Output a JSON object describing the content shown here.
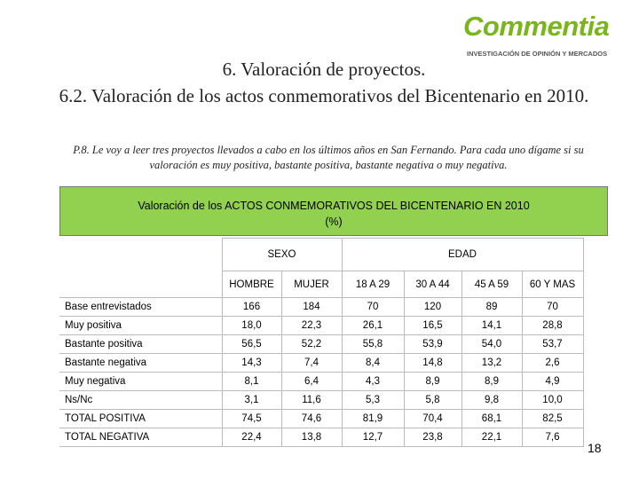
{
  "logo": {
    "name": "Commentia",
    "tagline": "INVESTIGACIÓN DE OPINIÓN Y MERCADOS"
  },
  "title": [
    "6. Valoración de proyectos.",
    "6.2. Valoración de los actos conmemorativos del Bicentenario en 2010."
  ],
  "question": "P.8. Le voy a leer tres proyectos llevados a cabo en los últimos años en San Fernando. Para cada uno dígame si su valoración es muy positiva, bastante positiva, bastante negativa o muy negativa.",
  "table": {
    "caption": "Valoración de los ACTOS CONMEMORATIVOS DEL BICENTENARIO EN 2010",
    "unit": "(%)",
    "groups": [
      {
        "label": "SEXO",
        "span": 2
      },
      {
        "label": "EDAD",
        "span": 4
      }
    ],
    "columns": [
      "HOMBRE",
      "MUJER",
      "18 A 29",
      "30 A 44",
      "45 A 59",
      "60 Y MAS"
    ],
    "rows": [
      [
        "Base entrevistados",
        "166",
        "184",
        "70",
        "120",
        "89",
        "70"
      ],
      [
        "Muy positiva",
        "18,0",
        "22,3",
        "26,1",
        "16,5",
        "14,1",
        "28,8"
      ],
      [
        "Bastante positiva",
        "56,5",
        "52,2",
        "55,8",
        "53,9",
        "54,0",
        "53,7"
      ],
      [
        "Bastante negativa",
        "14,3",
        "7,4",
        "8,4",
        "14,8",
        "13,2",
        "2,6"
      ],
      [
        "Muy negativa",
        "8,1",
        "6,4",
        "4,3",
        "8,9",
        "8,9",
        "4,9"
      ],
      [
        "Ns/Nc",
        "3,1",
        "11,6",
        "5,3",
        "5,8",
        "9,8",
        "10,0"
      ],
      [
        "TOTAL POSITIVA",
        "74,5",
        "74,6",
        "81,9",
        "70,4",
        "68,1",
        "82,5"
      ],
      [
        "TOTAL NEGATIVA",
        "22,4",
        "13,8",
        "12,7",
        "23,8",
        "22,1",
        "7,6"
      ]
    ]
  },
  "page_number": "18"
}
